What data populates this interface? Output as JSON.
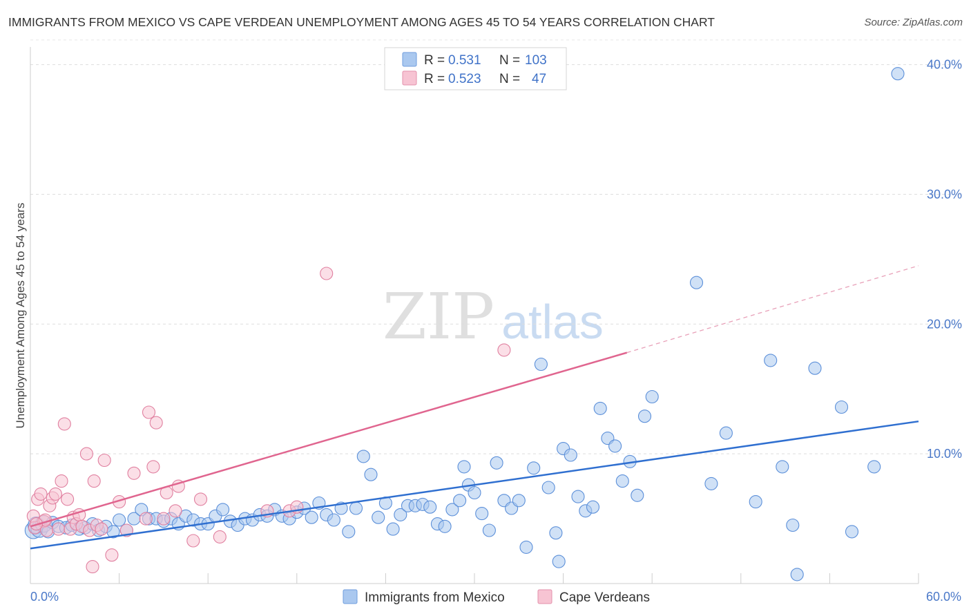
{
  "header": {
    "title": "IMMIGRANTS FROM MEXICO VS CAPE VERDEAN UNEMPLOYMENT AMONG AGES 45 TO 54 YEARS CORRELATION CHART",
    "source": "Source: ZipAtlas.com"
  },
  "watermark": {
    "zip": "ZIP",
    "atlas": "atlas"
  },
  "legend_top": [
    {
      "r_label": "R =",
      "r_value": "0.531",
      "n_label": "N =",
      "n_value": "103"
    },
    {
      "r_label": "R =",
      "r_value": "0.523",
      "n_label": "N =",
      "n_value": "47"
    }
  ],
  "chart_data": {
    "type": "scatter",
    "title": "IMMIGRANTS FROM MEXICO VS CAPE VERDEAN UNEMPLOYMENT AMONG AGES 45 TO 54 YEARS CORRELATION CHART",
    "xlabel": "",
    "ylabel": "Unemployment Among Ages 45 to 54 years",
    "xlim": [
      0,
      60
    ],
    "ylim": [
      0,
      42
    ],
    "x_tick_labels": [
      "0.0%",
      "60.0%"
    ],
    "y_ticks": [
      10,
      20,
      30,
      40
    ],
    "y_tick_labels": [
      "10.0%",
      "20.0%",
      "30.0%",
      "40.0%"
    ],
    "series": [
      {
        "name": "Immigrants from Mexico",
        "color": "#5b8fd9",
        "fill": "#aac8ef",
        "R": 0.531,
        "N": 103,
        "trend": {
          "x1": 0,
          "y1": 2.7,
          "x2": 60,
          "y2": 12.5,
          "dashed_to": null
        },
        "points": [
          [
            0.2,
            4.1
          ],
          [
            0.4,
            4.5
          ],
          [
            0.6,
            4.2
          ],
          [
            0.9,
            4.6
          ],
          [
            1.2,
            4.0
          ],
          [
            1.5,
            4.7
          ],
          [
            1.9,
            4.4
          ],
          [
            2.4,
            4.3
          ],
          [
            2.8,
            4.5
          ],
          [
            3.3,
            4.2
          ],
          [
            3.7,
            4.3
          ],
          [
            4.2,
            4.6
          ],
          [
            4.6,
            4.1
          ],
          [
            5.1,
            4.4
          ],
          [
            5.6,
            4.0
          ],
          [
            6.0,
            4.9
          ],
          [
            6.5,
            4.1
          ],
          [
            7.0,
            5.0
          ],
          [
            7.5,
            5.7
          ],
          [
            8.0,
            5.0
          ],
          [
            8.5,
            5.0
          ],
          [
            9.0,
            4.8
          ],
          [
            9.5,
            5.0
          ],
          [
            10.0,
            4.6
          ],
          [
            10.5,
            5.2
          ],
          [
            11.0,
            4.9
          ],
          [
            11.5,
            4.6
          ],
          [
            12.0,
            4.6
          ],
          [
            12.5,
            5.2
          ],
          [
            13.0,
            5.7
          ],
          [
            13.5,
            4.8
          ],
          [
            14.0,
            4.5
          ],
          [
            14.5,
            5.0
          ],
          [
            15.0,
            4.9
          ],
          [
            15.5,
            5.3
          ],
          [
            16.0,
            5.2
          ],
          [
            16.5,
            5.7
          ],
          [
            17.0,
            5.2
          ],
          [
            17.5,
            5.0
          ],
          [
            18.0,
            5.5
          ],
          [
            18.5,
            5.8
          ],
          [
            19.0,
            5.1
          ],
          [
            19.5,
            6.2
          ],
          [
            20.0,
            5.3
          ],
          [
            20.5,
            4.9
          ],
          [
            21.0,
            5.8
          ],
          [
            21.5,
            4.0
          ],
          [
            22.0,
            5.8
          ],
          [
            22.5,
            9.8
          ],
          [
            23.0,
            8.4
          ],
          [
            23.5,
            5.1
          ],
          [
            24.0,
            6.2
          ],
          [
            24.5,
            4.2
          ],
          [
            25.0,
            5.3
          ],
          [
            25.5,
            6.0
          ],
          [
            26.0,
            6.0
          ],
          [
            26.5,
            6.1
          ],
          [
            27.0,
            5.9
          ],
          [
            27.5,
            4.6
          ],
          [
            28.0,
            4.4
          ],
          [
            28.5,
            5.7
          ],
          [
            29.0,
            6.4
          ],
          [
            29.3,
            9.0
          ],
          [
            29.6,
            7.6
          ],
          [
            30.0,
            7.0
          ],
          [
            30.5,
            5.4
          ],
          [
            31.0,
            4.1
          ],
          [
            31.5,
            9.3
          ],
          [
            32.0,
            6.4
          ],
          [
            32.5,
            5.8
          ],
          [
            33.0,
            6.4
          ],
          [
            33.5,
            2.8
          ],
          [
            34.0,
            8.9
          ],
          [
            34.5,
            16.9
          ],
          [
            35.0,
            7.4
          ],
          [
            35.5,
            3.9
          ],
          [
            36.0,
            10.4
          ],
          [
            36.5,
            9.9
          ],
          [
            37.0,
            6.7
          ],
          [
            37.5,
            5.6
          ],
          [
            38.0,
            5.9
          ],
          [
            38.5,
            13.5
          ],
          [
            39.0,
            11.2
          ],
          [
            39.5,
            10.6
          ],
          [
            40.0,
            7.9
          ],
          [
            40.5,
            9.4
          ],
          [
            41.0,
            6.8
          ],
          [
            41.5,
            12.9
          ],
          [
            42.0,
            14.4
          ],
          [
            45.0,
            23.2
          ],
          [
            46.0,
            7.7
          ],
          [
            47.0,
            11.6
          ],
          [
            49.0,
            6.3
          ],
          [
            50.0,
            17.2
          ],
          [
            50.8,
            9.0
          ],
          [
            51.5,
            4.5
          ],
          [
            51.8,
            0.7
          ],
          [
            53.0,
            16.6
          ],
          [
            54.8,
            13.6
          ],
          [
            55.5,
            4.0
          ],
          [
            57.0,
            9.0
          ],
          [
            58.6,
            39.3
          ],
          [
            35.7,
            1.7
          ]
        ]
      },
      {
        "name": "Cape Verdeans",
        "color": "#e07f9f",
        "fill": "#f7c4d3",
        "R": 0.523,
        "N": 47,
        "trend": {
          "x1": 0,
          "y1": 4.4,
          "x2": 40.3,
          "y2": 17.8,
          "dashed_to": {
            "x": 60,
            "y": 24.5
          }
        },
        "points": [
          [
            0.2,
            5.2
          ],
          [
            0.3,
            4.3
          ],
          [
            0.5,
            6.5
          ],
          [
            0.7,
            6.9
          ],
          [
            0.9,
            4.8
          ],
          [
            1.1,
            4.1
          ],
          [
            1.3,
            6.0
          ],
          [
            1.5,
            6.6
          ],
          [
            1.7,
            6.9
          ],
          [
            1.9,
            4.2
          ],
          [
            2.1,
            7.9
          ],
          [
            2.3,
            12.3
          ],
          [
            2.5,
            6.5
          ],
          [
            2.7,
            4.2
          ],
          [
            2.9,
            5.1
          ],
          [
            3.1,
            4.6
          ],
          [
            3.3,
            5.3
          ],
          [
            3.5,
            4.4
          ],
          [
            3.8,
            10.0
          ],
          [
            4.0,
            4.1
          ],
          [
            4.3,
            7.9
          ],
          [
            4.5,
            4.5
          ],
          [
            4.8,
            4.2
          ],
          [
            5.0,
            9.5
          ],
          [
            5.5,
            2.2
          ],
          [
            6.0,
            6.3
          ],
          [
            6.5,
            4.1
          ],
          [
            7.0,
            8.5
          ],
          [
            7.8,
            5.0
          ],
          [
            8.0,
            13.2
          ],
          [
            8.3,
            9.0
          ],
          [
            8.5,
            12.4
          ],
          [
            9.0,
            5.0
          ],
          [
            9.2,
            7.0
          ],
          [
            9.8,
            5.6
          ],
          [
            10.0,
            7.5
          ],
          [
            11.0,
            3.3
          ],
          [
            11.5,
            6.5
          ],
          [
            12.8,
            3.6
          ],
          [
            16.0,
            5.6
          ],
          [
            17.5,
            5.6
          ],
          [
            18.0,
            5.9
          ],
          [
            20.0,
            23.9
          ],
          [
            32.0,
            18.0
          ],
          [
            4.2,
            1.3
          ],
          [
            1.0,
            4.9
          ],
          [
            0.4,
            4.6
          ]
        ]
      }
    ]
  },
  "legend_bottom": [
    "Immigrants from Mexico",
    "Cape Verdeans"
  ]
}
